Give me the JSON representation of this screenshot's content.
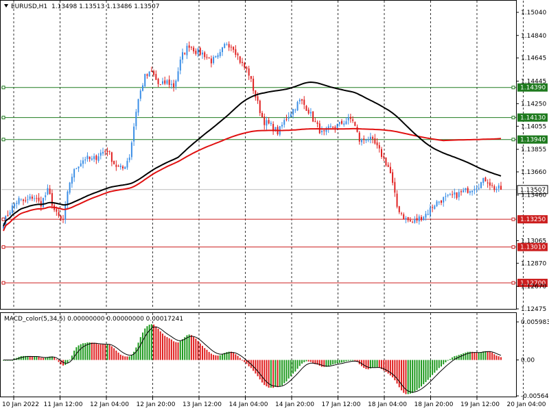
{
  "header": {
    "symbol": "EURUSD,H1",
    "ohlc": "1.13498 1.13513 1.13486 1.13507"
  },
  "macd": {
    "label": "MACD_color(5,34,5) 0.00000000 0.00000000 0.00017241"
  },
  "colors": {
    "bull": "#3a8ee6",
    "bear": "#e02020",
    "ma_fast": "#e01010",
    "ma_slow": "#000000",
    "support": "#cc1f1f",
    "resistance": "#1e7a1e",
    "hist_up": "#1f9a1f",
    "hist_down": "#e01f1f",
    "grid": "#000000"
  },
  "chart_data": [
    {
      "type": "candlestick",
      "title": "EURUSD,H1",
      "ylim": [
        1.12475,
        1.1504
      ],
      "price_ticks": [
        "1.15040",
        "1.14840",
        "1.14645",
        "1.14445",
        "1.14250",
        "1.14055",
        "1.13855",
        "1.13660",
        "1.13460",
        "1.13065",
        "1.12870",
        "1.12670",
        "1.12475"
      ],
      "time_labels": [
        "10 Jan 2022",
        "11 Jan 12:00",
        "12 Jan 04:00",
        "12 Jan 20:00",
        "13 Jan 12:00",
        "14 Jan 04:00",
        "14 Jan 20:00",
        "17 Jan 12:00",
        "18 Jan 04:00",
        "18 Jan 20:00",
        "19 Jan 12:00",
        "20 Jan 04:00"
      ],
      "current_price": "1.13507",
      "levels": [
        {
          "price": "1.14390",
          "kind": "resistance"
        },
        {
          "price": "1.14130",
          "kind": "resistance"
        },
        {
          "price": "1.13940",
          "kind": "resistance"
        },
        {
          "price": "1.13250",
          "kind": "support"
        },
        {
          "price": "1.13010",
          "kind": "support"
        },
        {
          "price": "1.12700",
          "kind": "support"
        }
      ],
      "close_path": [
        1.1322,
        1.1334,
        1.1342,
        1.134,
        1.1345,
        1.1338,
        1.135,
        1.133,
        1.1323,
        1.136,
        1.1372,
        1.1378,
        1.1376,
        1.1382,
        1.1385,
        1.1372,
        1.1368,
        1.138,
        1.1425,
        1.1448,
        1.1452,
        1.144,
        1.1444,
        1.144,
        1.1466,
        1.1476,
        1.147,
        1.1468,
        1.1462,
        1.1465,
        1.1478,
        1.1474,
        1.146,
        1.1452,
        1.143,
        1.141,
        1.1406,
        1.14,
        1.1412,
        1.142,
        1.1428,
        1.142,
        1.1408,
        1.1398,
        1.1404,
        1.1406,
        1.141,
        1.1412,
        1.1392,
        1.1396,
        1.139,
        1.138,
        1.1368,
        1.1336,
        1.1326,
        1.1322,
        1.1326,
        1.133,
        1.1338,
        1.1342,
        1.1344,
        1.1346,
        1.1349,
        1.1352,
        1.1355,
        1.136,
        1.1352,
        1.1351
      ]
    },
    {
      "type": "bar",
      "title": "MACD_color(5,34,5)",
      "y_ticks": [
        "0.0059831",
        "0.00",
        "-0.005649"
      ],
      "ylim": [
        -0.005649,
        0.0059831
      ]
    }
  ]
}
